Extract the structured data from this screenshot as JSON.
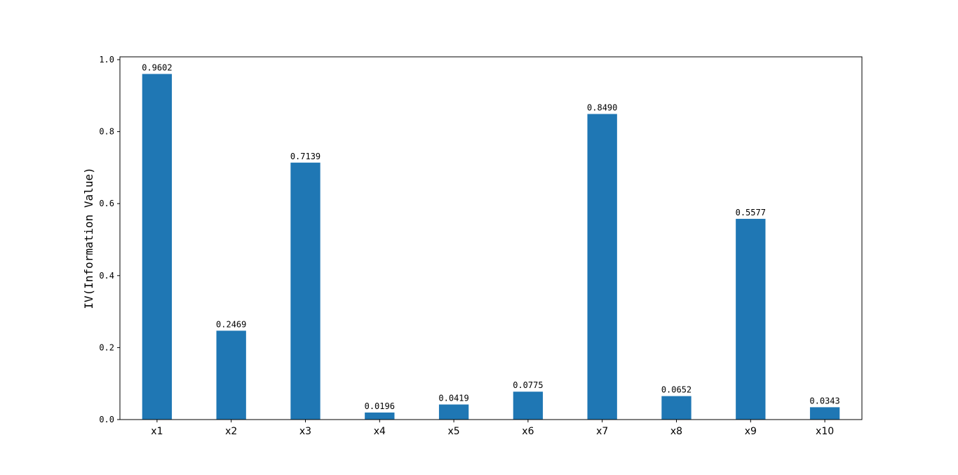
{
  "chart_data": {
    "type": "bar",
    "title": "",
    "xlabel": "",
    "ylabel": "IV(Information Value)",
    "categories": [
      "x1",
      "x2",
      "x3",
      "x4",
      "x5",
      "x6",
      "x7",
      "x8",
      "x9",
      "x10"
    ],
    "values": [
      0.9602,
      0.2469,
      0.7139,
      0.0196,
      0.0419,
      0.0775,
      0.849,
      0.0652,
      0.5577,
      0.0343
    ],
    "value_labels": [
      "0.9602",
      "0.2469",
      "0.7139",
      "0.0196",
      "0.0419",
      "0.0775",
      "0.8490",
      "0.0652",
      "0.5577",
      "0.0343"
    ],
    "ylim": [
      0,
      1.0078
    ],
    "yticks": [
      0.0,
      0.2,
      0.4,
      0.6,
      0.8,
      1.0
    ],
    "ytick_labels": [
      "0.0",
      "0.2",
      "0.4",
      "0.6",
      "0.8",
      "1.0"
    ],
    "bar_color": "#1f77b4",
    "grid": false,
    "legend": "none"
  }
}
